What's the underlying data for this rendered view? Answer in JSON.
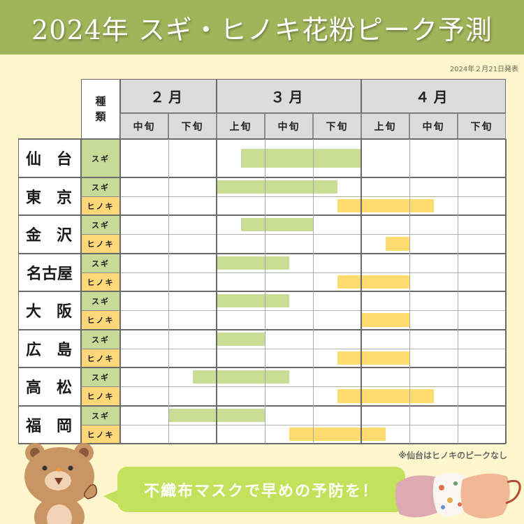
{
  "title": "2024年 スギ・ヒノキ花粉ピーク予測",
  "published": "2024年２月21日発表",
  "table": {
    "type_header": [
      "種",
      "類"
    ],
    "months": [
      {
        "label": "２月",
        "periods": [
          "中旬",
          "下旬"
        ]
      },
      {
        "label": "３月",
        "periods": [
          "上旬",
          "中旬",
          "下旬"
        ]
      },
      {
        "label": "４月",
        "periods": [
          "上旬",
          "中旬",
          "下旬"
        ]
      }
    ],
    "type_labels": {
      "sugi": "スギ",
      "hinoki": "ヒノキ"
    }
  },
  "cities": [
    {
      "name": "仙 台",
      "chars": [
        "仙",
        "台"
      ]
    },
    {
      "name": "東 京",
      "chars": [
        "東",
        "京"
      ]
    },
    {
      "name": "金 沢",
      "chars": [
        "金",
        "沢"
      ]
    },
    {
      "name": "名古屋",
      "chars": [
        "名古屋"
      ]
    },
    {
      "name": "大 阪",
      "chars": [
        "大",
        "阪"
      ]
    },
    {
      "name": "広 島",
      "chars": [
        "広",
        "島"
      ]
    },
    {
      "name": "高 松",
      "chars": [
        "高",
        "松"
      ]
    },
    {
      "name": "福 岡",
      "chars": [
        "福",
        "岡"
      ]
    }
  ],
  "footnote": "※仙台はヒノキのピークなし",
  "callout": "不織布マスクで早めの予防を！",
  "colors": {
    "header_green": "#a0b45a",
    "background": "#fef6cd",
    "sugi": "#c9de94",
    "hinoki": "#ffdb70",
    "callout": "#c3e25c"
  },
  "chart_data": {
    "type": "gantt",
    "title": "2024年 スギ・ヒノキ花粉ピーク予測",
    "subtitle": "2024年２月21日発表",
    "periods": [
      "2月中旬",
      "2月下旬",
      "3月上旬",
      "3月中旬",
      "3月下旬",
      "4月上旬",
      "4月中旬",
      "4月下旬"
    ],
    "unit_note": "start/end expressed in period units from start of 2月中旬 (0) to end of 4月下旬 (8)",
    "series": [
      {
        "city": "仙台",
        "type": "スギ",
        "start": 2.5,
        "end": 5.0
      },
      {
        "city": "東京",
        "type": "スギ",
        "start": 2.0,
        "end": 4.5
      },
      {
        "city": "東京",
        "type": "ヒノキ",
        "start": 4.5,
        "end": 6.5
      },
      {
        "city": "金沢",
        "type": "スギ",
        "start": 2.5,
        "end": 4.0
      },
      {
        "city": "金沢",
        "type": "ヒノキ",
        "start": 5.5,
        "end": 6.0
      },
      {
        "city": "名古屋",
        "type": "スギ",
        "start": 2.0,
        "end": 3.5
      },
      {
        "city": "名古屋",
        "type": "ヒノキ",
        "start": 4.5,
        "end": 6.0
      },
      {
        "city": "大阪",
        "type": "スギ",
        "start": 2.0,
        "end": 3.5
      },
      {
        "city": "大阪",
        "type": "ヒノキ",
        "start": 5.0,
        "end": 6.0
      },
      {
        "city": "広島",
        "type": "スギ",
        "start": 2.0,
        "end": 3.0
      },
      {
        "city": "広島",
        "type": "ヒノキ",
        "start": 4.5,
        "end": 6.0
      },
      {
        "city": "高松",
        "type": "スギ",
        "start": 1.5,
        "end": 3.5
      },
      {
        "city": "高松",
        "type": "ヒノキ",
        "start": 4.5,
        "end": 6.5
      },
      {
        "city": "福岡",
        "type": "スギ",
        "start": 1.0,
        "end": 3.0
      },
      {
        "city": "福岡",
        "type": "ヒノキ",
        "start": 3.5,
        "end": 5.5
      }
    ],
    "legend": [
      {
        "name": "スギ",
        "color": "#c9de94"
      },
      {
        "name": "ヒノキ",
        "color": "#ffdb70"
      }
    ],
    "footnote": "※仙台はヒノキのピークなし"
  }
}
